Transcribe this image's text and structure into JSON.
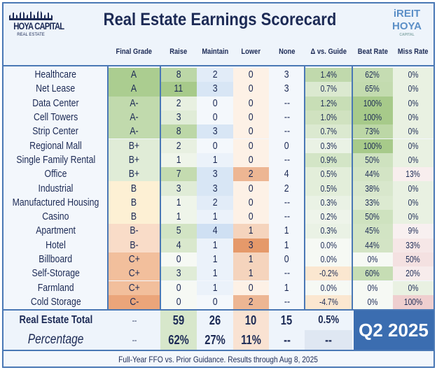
{
  "title": "Real Estate Earnings Scorecard",
  "logo_left": {
    "line1": "HOYA CAPITAL",
    "line2": "REAL ESTATE"
  },
  "logo_right": {
    "line1": "iREIT",
    "line2": "HOYA",
    "line3": "CAPITAL"
  },
  "columns": [
    "",
    "Final Grade",
    "Raise",
    "Maintain",
    "Lower",
    "None",
    "Δ vs. Guide",
    "Beat Rate",
    "Miss Rate"
  ],
  "rows": [
    [
      "Healthcare",
      "A",
      "8",
      "2",
      "0",
      "3",
      "1.4%",
      "62%",
      "0%"
    ],
    [
      "Net Lease",
      "A",
      "11",
      "3",
      "0",
      "3",
      "0.7%",
      "65%",
      "0%"
    ],
    [
      "Data Center",
      "A-",
      "2",
      "0",
      "0",
      "--",
      "1.2%",
      "100%",
      "0%"
    ],
    [
      "Cell Towers",
      "A-",
      "3",
      "0",
      "0",
      "--",
      "1.0%",
      "100%",
      "0%"
    ],
    [
      "Strip Center",
      "A-",
      "8",
      "3",
      "0",
      "--",
      "0.7%",
      "73%",
      "0%"
    ],
    [
      "Regional Mall",
      "B+",
      "2",
      "0",
      "0",
      "0",
      "0.3%",
      "100%",
      "0%"
    ],
    [
      "Single Family Rental",
      "B+",
      "1",
      "1",
      "0",
      "--",
      "0.9%",
      "50%",
      "0%"
    ],
    [
      "Office",
      "B+",
      "7",
      "3",
      "2",
      "4",
      "0.5%",
      "44%",
      "13%"
    ],
    [
      "Industrial",
      "B",
      "3",
      "3",
      "0",
      "2",
      "0.5%",
      "38%",
      "0%"
    ],
    [
      "Manufactured Housing",
      "B",
      "1",
      "2",
      "0",
      "--",
      "0.3%",
      "33%",
      "0%"
    ],
    [
      "Casino",
      "B",
      "1",
      "1",
      "0",
      "--",
      "0.2%",
      "50%",
      "0%"
    ],
    [
      "Apartment",
      "B-",
      "5",
      "4",
      "1",
      "1",
      "0.3%",
      "45%",
      "9%"
    ],
    [
      "Hotel",
      "B-",
      "4",
      "1",
      "3",
      "1",
      "0.0%",
      "44%",
      "33%"
    ],
    [
      "Billboard",
      "C+",
      "0",
      "1",
      "1",
      "0",
      "0.0%",
      "0%",
      "50%"
    ],
    [
      "Self-Storage",
      "C+",
      "3",
      "1",
      "1",
      "--",
      "-0.2%",
      "60%",
      "20%"
    ],
    [
      "Farmland",
      "C+",
      "0",
      "1",
      "0",
      "1",
      "0.0%",
      "0%",
      "0%"
    ],
    [
      "Cold Storage",
      "C-",
      "0",
      "0",
      "2",
      "--",
      "-4.7%",
      "0%",
      "100%"
    ]
  ],
  "total": [
    "Real Estate Total",
    "--",
    "59",
    "26",
    "10",
    "15",
    "0.5%"
  ],
  "percentage": [
    "Percentage",
    "--",
    "62%",
    "27%",
    "11%",
    "--",
    "--"
  ],
  "period_badge": "Q2 2025",
  "footer": "Full-Year FFO vs. Prior Guidance. Results through Aug 8, 2025",
  "colors": {
    "border": "#4a78b5",
    "badge": "#3b6db0",
    "text": "#1c2a55",
    "green": "#a9cf8c",
    "orange": "#e8a477",
    "blue": "#d6e5f5"
  }
}
